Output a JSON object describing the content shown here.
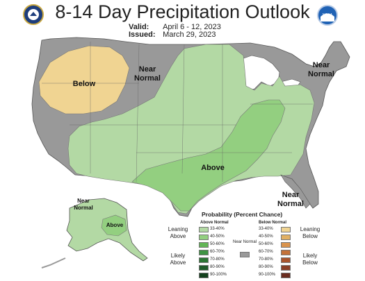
{
  "title": "8-14 Day Precipitation Outlook",
  "valid_label": "Valid:",
  "valid_value": "April 6 - 12, 2023",
  "issued_label": "Issued:",
  "issued_value": "March 29, 2023",
  "map_labels": {
    "below_west": "Below",
    "near_normal_north": "Near Normal",
    "near_normal_northeast": "Near Normal",
    "above_central": "Above",
    "near_normal_florida": "Near Normal",
    "near_normal_alaska": "Near Normal",
    "above_alaska": "Above"
  },
  "legend": {
    "title": "Probability (Percent Chance)",
    "above_header": "Above Normal",
    "below_header": "Below Normal",
    "near_normal": "Near Normal",
    "leaning_above": "Leaning Above",
    "likely_above": "Likely Above",
    "leaning_below": "Leaning Below",
    "likely_below": "Likely Below",
    "ranges": [
      "33-40%",
      "40-50%",
      "50-60%",
      "60-70%",
      "70-80%",
      "80-90%",
      "90-100%"
    ],
    "above_colors": [
      "#b3d9a4",
      "#93cf80",
      "#62b556",
      "#3f9443",
      "#2c7534",
      "#1f5b29",
      "#13411d"
    ],
    "below_colors": [
      "#f0d492",
      "#e1b063",
      "#d9934c",
      "#c4723a",
      "#a9542d",
      "#8a3f27",
      "#6a2c1f"
    ],
    "near_color": "#9a9a9a"
  },
  "colors": {
    "near_normal": "#999999",
    "above_light": "#b3d9a4",
    "above_medium": "#93cf80",
    "below_light": "#f0d492",
    "water": "#ffffff",
    "borders": "#555555"
  },
  "icons": [
    "commerce-seal-icon",
    "noaa-logo-icon"
  ]
}
